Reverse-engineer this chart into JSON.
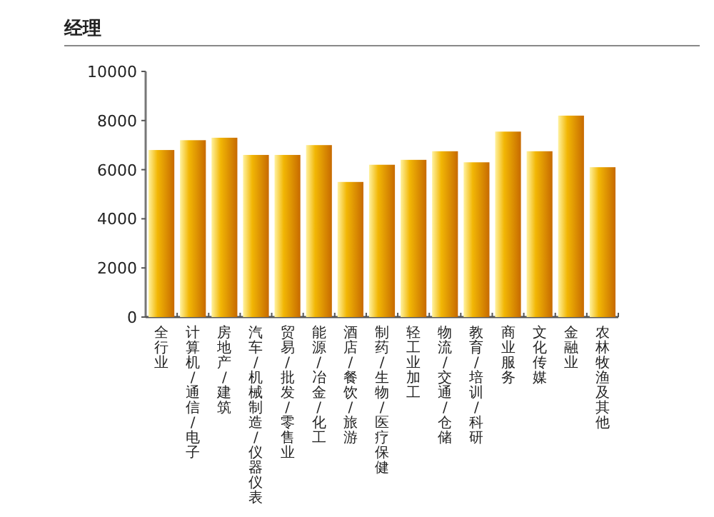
{
  "chart_data": {
    "type": "bar",
    "title": "经理",
    "categories": [
      "全行业",
      "计算机/通信/电子",
      "房地产/建筑",
      "汽车/机械制造/仪器仪表",
      "贸易/批发/零售业",
      "能源/冶金/化工",
      "酒店/餐饮/旅游",
      "制药/生物/医疗保健",
      "轻工业加工",
      "物流/交通/仓储",
      "教育/培训/科研",
      "商业服务",
      "文化传媒",
      "金融业",
      "农林牧渔及其他"
    ],
    "values": [
      6800,
      7200,
      7300,
      6600,
      6600,
      7000,
      5500,
      6200,
      6400,
      6750,
      6300,
      7550,
      6750,
      8200,
      6100
    ],
    "color": "#f2b705",
    "ylim": [
      0,
      10000
    ],
    "yticks": [
      0,
      2000,
      4000,
      6000,
      8000,
      10000
    ],
    "grid": false
  }
}
